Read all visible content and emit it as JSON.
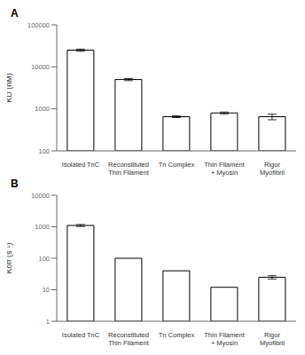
{
  "chart_data": [
    {
      "type": "bar",
      "title": "A",
      "categories": [
        "Isolated TnC",
        "Reconstituted\nThin Filament",
        "Tn Complex",
        "Thin Filament\n+ Myosin",
        "Rigor\nMyofibril"
      ],
      "values": [
        25000,
        5000,
        650,
        800,
        650
      ],
      "errors": [
        1500,
        300,
        30,
        40,
        100
      ],
      "y_label": "KD (nM)",
      "log": "y",
      "ylim": [
        100,
        100000
      ],
      "yticks": [
        100,
        1000,
        10000,
        100000
      ],
      "color": "white"
    },
    {
      "type": "bar",
      "title": "B",
      "categories": [
        "Isolated TnC",
        "Reconstituted\nThin Filament",
        "Tn Complex",
        "Thin Filament\n+ Myosin",
        "Rigor\nMyofibril"
      ],
      "values": [
        1100,
        100,
        40,
        12,
        25
      ],
      "errors": [
        80,
        null,
        null,
        null,
        3
      ],
      "y_label": "Koff (s⁻¹)",
      "log": "y",
      "ylim": [
        1,
        10000
      ],
      "yticks": [
        1,
        10,
        100,
        1000,
        10000
      ],
      "color": "white"
    }
  ]
}
